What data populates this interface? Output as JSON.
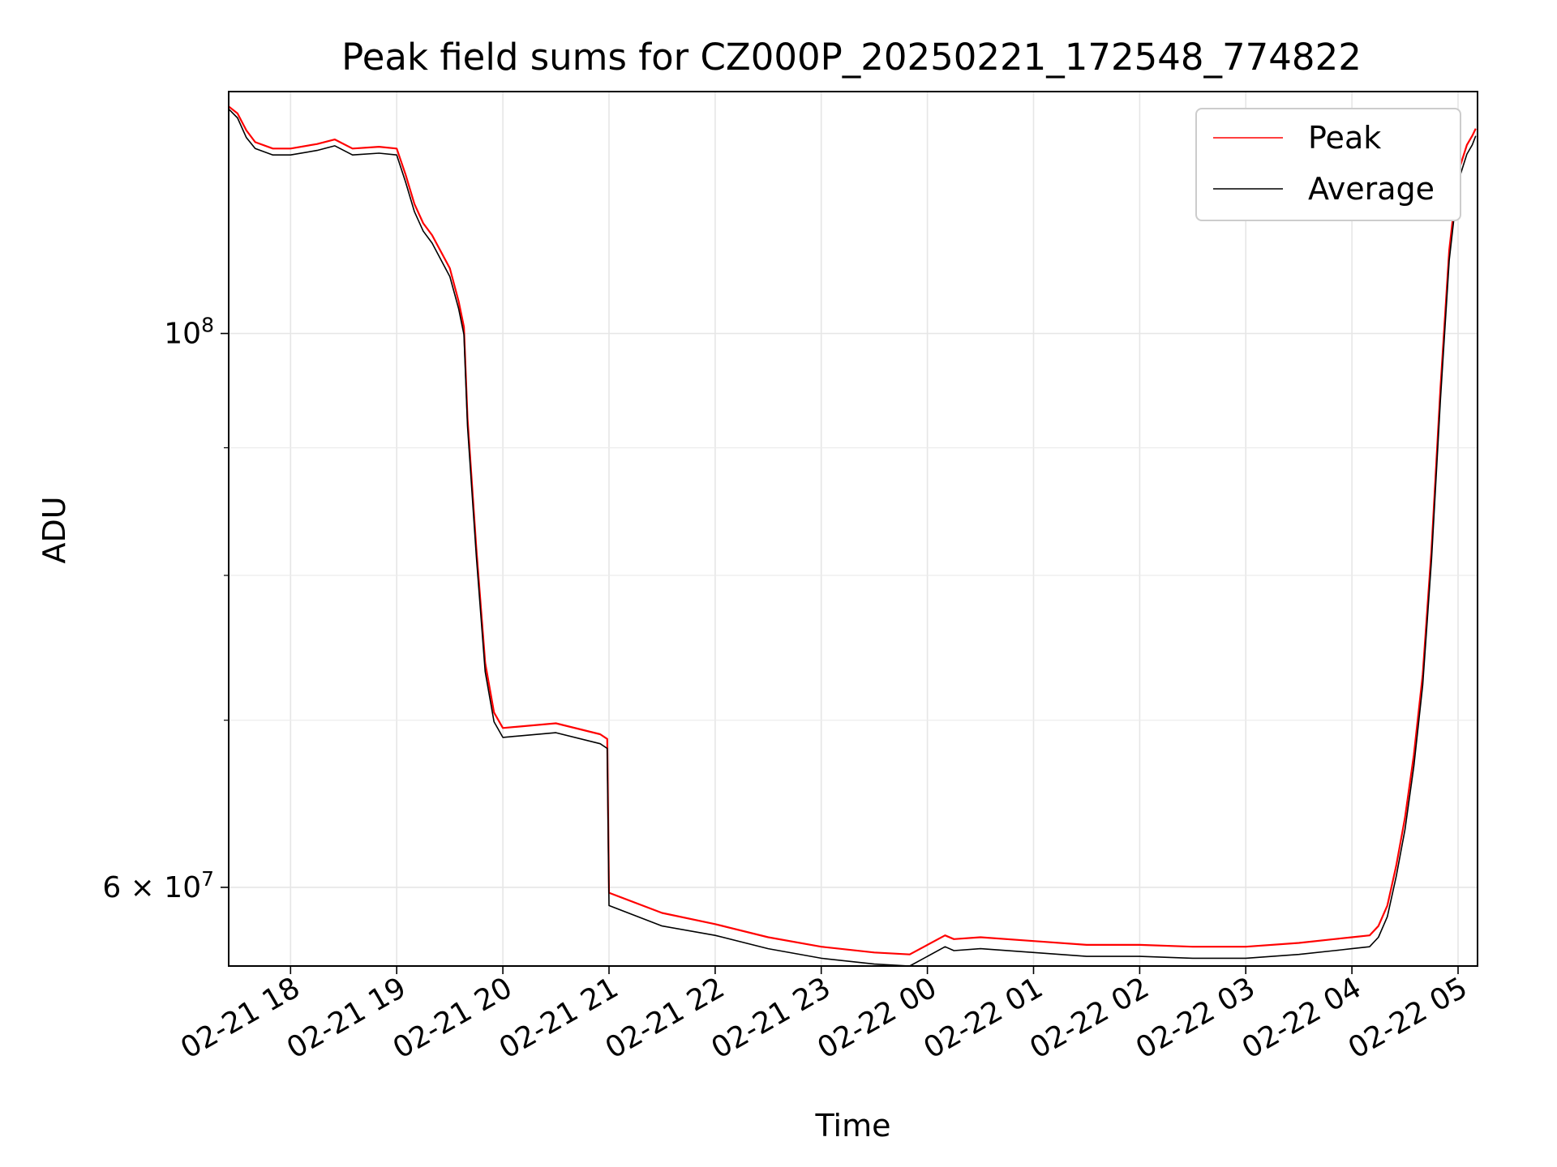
{
  "chart_data": {
    "type": "line",
    "title": "Peak field sums for CZ000P_20250221_172548_774822",
    "xlabel": "Time",
    "ylabel": "ADU",
    "yscale": "log",
    "xlim": [
      "2025-02-21 17:25",
      "2025-02-22 05:11"
    ],
    "ylim": [
      55800000,
      125000000
    ],
    "grid": true,
    "legend_position": "upper right",
    "x_ticks": [
      "02-21 18",
      "02-21 19",
      "02-21 20",
      "02-21 21",
      "02-21 22",
      "02-21 23",
      "02-22 00",
      "02-22 01",
      "02-22 02",
      "02-22 03",
      "02-22 04",
      "02-22 05"
    ],
    "y_major_ticks": [
      {
        "value": 60000000,
        "base": "6",
        "mid": " × 10",
        "exp": "7"
      },
      {
        "value": 100000000,
        "base": "",
        "mid": "10",
        "exp": "8"
      }
    ],
    "y_minor_ticks": [
      70000000,
      80000000,
      90000000
    ],
    "x": [
      "2025-02-21 17:25",
      "2025-02-21 17:30",
      "2025-02-21 17:35",
      "2025-02-21 17:40",
      "2025-02-21 17:50",
      "2025-02-21 18:00",
      "2025-02-21 18:15",
      "2025-02-21 18:25",
      "2025-02-21 18:35",
      "2025-02-21 18:50",
      "2025-02-21 19:00",
      "2025-02-21 19:05",
      "2025-02-21 19:10",
      "2025-02-21 19:15",
      "2025-02-21 19:20",
      "2025-02-21 19:30",
      "2025-02-21 19:35",
      "2025-02-21 19:38",
      "2025-02-21 19:40",
      "2025-02-21 19:45",
      "2025-02-21 19:50",
      "2025-02-21 19:55",
      "2025-02-21 20:00",
      "2025-02-21 20:30",
      "2025-02-21 20:55",
      "2025-02-21 20:59",
      "2025-02-21 21:00",
      "2025-02-21 21:30",
      "2025-02-21 22:00",
      "2025-02-21 22:30",
      "2025-02-21 23:00",
      "2025-02-21 23:30",
      "2025-02-21 23:50",
      "2025-02-22 00:10",
      "2025-02-22 00:15",
      "2025-02-22 00:30",
      "2025-02-22 01:00",
      "2025-02-22 01:30",
      "2025-02-22 02:00",
      "2025-02-22 02:30",
      "2025-02-22 03:00",
      "2025-02-22 03:30",
      "2025-02-22 03:50",
      "2025-02-22 04:00",
      "2025-02-22 04:10",
      "2025-02-22 04:15",
      "2025-02-22 04:20",
      "2025-02-22 04:25",
      "2025-02-22 04:30",
      "2025-02-22 04:35",
      "2025-02-22 04:40",
      "2025-02-22 04:45",
      "2025-02-22 04:50",
      "2025-02-22 04:55",
      "2025-02-22 05:00",
      "2025-02-22 05:05",
      "2025-02-22 05:08",
      "2025-02-22 05:10"
    ],
    "series": [
      {
        "name": "Peak",
        "color": "#ff0000",
        "values": [
          123300000,
          122500000,
          120600000,
          119300000,
          118600000,
          118600000,
          119100000,
          119600000,
          118600000,
          118800000,
          118600000,
          115800000,
          112700000,
          110700000,
          109500000,
          106200000,
          103000000,
          100600000,
          92500000,
          82000000,
          73800000,
          70500000,
          69500000,
          69800000,
          69100000,
          68800000,
          59700000,
          58600000,
          58000000,
          57300000,
          56800000,
          56500000,
          56400000,
          57400000,
          57200000,
          57300000,
          57100000,
          56900000,
          56900000,
          56800000,
          56800000,
          57000000,
          57200000,
          57300000,
          57400000,
          57900000,
          59000000,
          61200000,
          64000000,
          67800000,
          73000000,
          82000000,
          95000000,
          108000000,
          116000000,
          119000000,
          120000000,
          120800000
        ]
      },
      {
        "name": "Average",
        "color": "#000000",
        "values": [
          123000000,
          122000000,
          119800000,
          118600000,
          117900000,
          117900000,
          118400000,
          118900000,
          117900000,
          118100000,
          117900000,
          115000000,
          111900000,
          109900000,
          108700000,
          105400000,
          102300000,
          99900000,
          91800000,
          81400000,
          73200000,
          69900000,
          68900000,
          69200000,
          68500000,
          68200000,
          59000000,
          57900000,
          57400000,
          56700000,
          56200000,
          55900000,
          55800000,
          56800000,
          56600000,
          56700000,
          56500000,
          56300000,
          56300000,
          56200000,
          56200000,
          56400000,
          56600000,
          56700000,
          56800000,
          57300000,
          58400000,
          60600000,
          63300000,
          67100000,
          72300000,
          81200000,
          94000000,
          107000000,
          115000000,
          118000000,
          119000000,
          120000000
        ]
      }
    ]
  }
}
